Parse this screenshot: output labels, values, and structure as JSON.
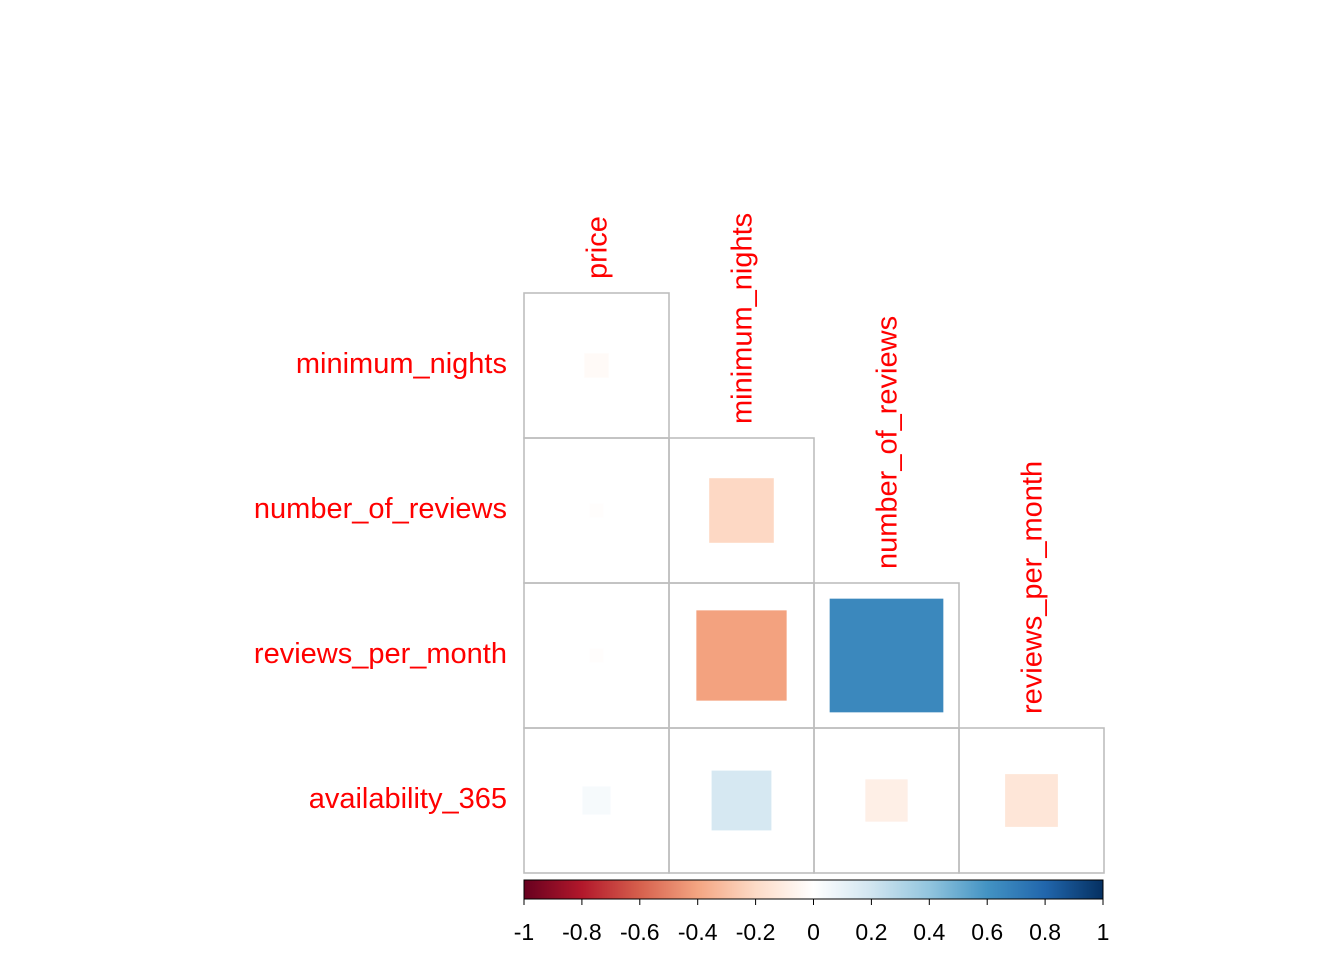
{
  "chart_data": {
    "type": "heatmap",
    "variant": "corrplot-square-lower",
    "variables": [
      "price",
      "minimum_nights",
      "number_of_reviews",
      "reviews_per_month",
      "availability_365"
    ],
    "row_labels": [
      "minimum_nights",
      "number_of_reviews",
      "reviews_per_month",
      "availability_365"
    ],
    "column_labels": [
      "price",
      "minimum_nights",
      "number_of_reviews",
      "reviews_per_month"
    ],
    "cells": [
      {
        "row": "minimum_nights",
        "col": "price",
        "value": -0.03
      },
      {
        "row": "number_of_reviews",
        "col": "price",
        "value": -0.01
      },
      {
        "row": "number_of_reviews",
        "col": "minimum_nights",
        "value": -0.21
      },
      {
        "row": "reviews_per_month",
        "col": "price",
        "value": -0.01
      },
      {
        "row": "reviews_per_month",
        "col": "minimum_nights",
        "value": -0.41
      },
      {
        "row": "reviews_per_month",
        "col": "number_of_reviews",
        "value": 0.65
      },
      {
        "row": "availability_365",
        "col": "price",
        "value": 0.04
      },
      {
        "row": "availability_365",
        "col": "minimum_nights",
        "value": 0.18
      },
      {
        "row": "availability_365",
        "col": "number_of_reviews",
        "value": -0.09
      },
      {
        "row": "availability_365",
        "col": "reviews_per_month",
        "value": -0.14
      }
    ],
    "colorbar": {
      "range": [
        -1,
        1
      ],
      "ticks": [
        "-1",
        "-0.8",
        "-0.6",
        "-0.4",
        "-0.2",
        "0",
        "0.2",
        "0.4",
        "0.6",
        "0.8",
        "1"
      ],
      "palette": [
        "#67001F",
        "#B2182B",
        "#D6604D",
        "#F4A582",
        "#FDDBC7",
        "#FFFFFF",
        "#D1E5F0",
        "#92C5DE",
        "#4393C3",
        "#2166AC",
        "#053061"
      ]
    },
    "label_color": "#FF0000",
    "grid_color": "#BEBEBE",
    "legend_position": "bottom"
  }
}
